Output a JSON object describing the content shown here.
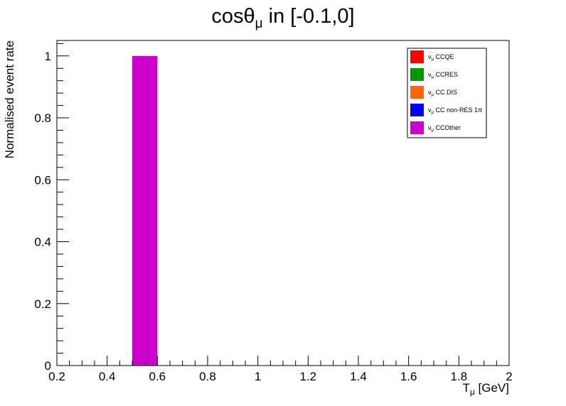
{
  "chart_data": {
    "type": "bar",
    "title": {
      "prefix": "cosθ",
      "sub": "μ",
      "suffix": " in [-0.1,0]"
    },
    "xlabel": {
      "main": "T",
      "sub": "μ",
      "unit": " [GeV]"
    },
    "ylabel": "Normalised event rate",
    "xlim": [
      0.2,
      2.0
    ],
    "ylim": [
      0,
      1.05
    ],
    "x_ticks": [
      {
        "value": 0.2,
        "label": "0.2"
      },
      {
        "value": 0.4,
        "label": "0.4"
      },
      {
        "value": 0.6,
        "label": "0.6"
      },
      {
        "value": 0.8,
        "label": "0.8"
      },
      {
        "value": 1.0,
        "label": "1"
      },
      {
        "value": 1.2,
        "label": "1.2"
      },
      {
        "value": 1.4,
        "label": "1.4"
      },
      {
        "value": 1.6,
        "label": "1.6"
      },
      {
        "value": 1.8,
        "label": "1.8"
      },
      {
        "value": 2.0,
        "label": "2"
      }
    ],
    "y_ticks": [
      {
        "value": 0,
        "label": "0"
      },
      {
        "value": 0.2,
        "label": "0.2"
      },
      {
        "value": 0.4,
        "label": "0.4"
      },
      {
        "value": 0.6,
        "label": "0.6"
      },
      {
        "value": 0.8,
        "label": "0.8"
      },
      {
        "value": 1.0,
        "label": "1"
      }
    ],
    "grid": false,
    "legend_position": "top-right",
    "series": [
      {
        "name_sym": "ν",
        "name_sub": "μ",
        "name_rest": " CCQE",
        "color": "#ff0000",
        "bins": []
      },
      {
        "name_sym": "ν",
        "name_sub": "μ",
        "name_rest": " CCRES",
        "color": "#009900",
        "bins": []
      },
      {
        "name_sym": "ν",
        "name_sub": "μ",
        "name_rest": " CC DIS",
        "color": "#ff6600",
        "bins": []
      },
      {
        "name_sym": "ν",
        "name_sub": "μ",
        "name_rest": " CC non-RES 1π",
        "color": "#0000ff",
        "bins": []
      },
      {
        "name_sym": "ν",
        "name_sub": "μ",
        "name_rest": " CCOther",
        "color": "#cc00cc",
        "bins": [
          {
            "x0": 0.5,
            "x1": 0.6,
            "value": 1.0
          }
        ]
      }
    ]
  }
}
